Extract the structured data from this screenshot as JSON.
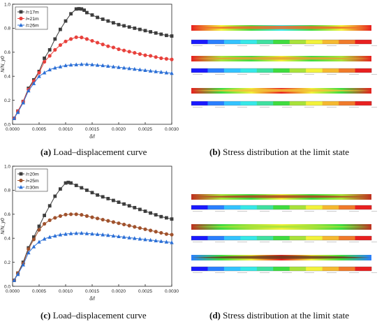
{
  "chart_data": [
    {
      "type": "line",
      "panel": "a",
      "xlabel": "δ/l",
      "ylabel": "N/N_y0",
      "xlim": [
        0,
        0.003
      ],
      "ylim": [
        0,
        1.0
      ],
      "xticks": [
        "0.0000",
        "0.0005",
        "0.0010",
        "0.0015",
        "0.0020",
        "0.0025",
        "0.0030"
      ],
      "yticks": [
        "0.0",
        "0.2",
        "0.4",
        "0.6",
        "0.8",
        "1.0"
      ],
      "legend_position": "top-left",
      "series": [
        {
          "name": "l=17m",
          "var": "l",
          "rest": "=17m",
          "color": "#3d3d3d",
          "marker": "square",
          "x": [
            3e-05,
            0.0001,
            0.0002,
            0.0003,
            0.0004,
            0.0005,
            0.0006,
            0.0007,
            0.0008,
            0.0009,
            0.001,
            0.0011,
            0.0012,
            0.00125,
            0.0013,
            0.00135,
            0.0014,
            0.0015,
            0.0016,
            0.0017,
            0.0018,
            0.0019,
            0.002,
            0.0021,
            0.0022,
            0.0023,
            0.0024,
            0.0025,
            0.0026,
            0.0027,
            0.0028,
            0.0029,
            0.003
          ],
          "y": [
            0.05,
            0.11,
            0.19,
            0.3,
            0.37,
            0.44,
            0.55,
            0.62,
            0.71,
            0.79,
            0.86,
            0.92,
            0.96,
            0.962,
            0.96,
            0.95,
            0.93,
            0.91,
            0.89,
            0.875,
            0.86,
            0.845,
            0.83,
            0.82,
            0.81,
            0.8,
            0.79,
            0.78,
            0.77,
            0.76,
            0.75,
            0.74,
            0.735
          ]
        },
        {
          "name": "l=21m",
          "var": "l",
          "rest": "=21m",
          "color": "#e8413c",
          "marker": "circle",
          "x": [
            3e-05,
            0.0001,
            0.0002,
            0.0003,
            0.0004,
            0.0005,
            0.0006,
            0.0007,
            0.0008,
            0.0009,
            0.001,
            0.0011,
            0.0012,
            0.0013,
            0.0014,
            0.0015,
            0.0016,
            0.0017,
            0.0018,
            0.0019,
            0.002,
            0.0021,
            0.0022,
            0.0023,
            0.0024,
            0.0025,
            0.0026,
            0.0027,
            0.0028,
            0.0029,
            0.003
          ],
          "y": [
            0.05,
            0.11,
            0.19,
            0.29,
            0.36,
            0.43,
            0.52,
            0.57,
            0.62,
            0.66,
            0.69,
            0.71,
            0.725,
            0.723,
            0.71,
            0.695,
            0.68,
            0.665,
            0.65,
            0.64,
            0.625,
            0.615,
            0.605,
            0.595,
            0.585,
            0.575,
            0.57,
            0.56,
            0.55,
            0.545,
            0.54
          ]
        },
        {
          "name": "l=26m",
          "var": "l",
          "rest": "=26m",
          "color": "#2b6fd6",
          "marker": "triangle",
          "x": [
            3e-05,
            0.0001,
            0.0002,
            0.0003,
            0.0004,
            0.0005,
            0.0006,
            0.0007,
            0.0008,
            0.0009,
            0.001,
            0.0011,
            0.0012,
            0.0013,
            0.0014,
            0.0015,
            0.0016,
            0.0017,
            0.0018,
            0.0019,
            0.002,
            0.0021,
            0.0022,
            0.0023,
            0.0024,
            0.0025,
            0.0026,
            0.0027,
            0.0028,
            0.0029,
            0.003
          ],
          "y": [
            0.05,
            0.1,
            0.18,
            0.28,
            0.34,
            0.4,
            0.43,
            0.455,
            0.47,
            0.48,
            0.49,
            0.495,
            0.497,
            0.5,
            0.5,
            0.497,
            0.493,
            0.49,
            0.485,
            0.48,
            0.475,
            0.47,
            0.465,
            0.46,
            0.455,
            0.45,
            0.445,
            0.44,
            0.435,
            0.43,
            0.425
          ]
        }
      ]
    },
    {
      "type": "line",
      "panel": "c",
      "xlabel": "δ/l",
      "ylabel": "N/N_y0",
      "xlim": [
        0,
        0.003
      ],
      "ylim": [
        0,
        1.0
      ],
      "xticks": [
        "0.0000",
        "0.0005",
        "0.0010",
        "0.0015",
        "0.0020",
        "0.0025",
        "0.0030"
      ],
      "yticks": [
        "0.0",
        "0.2",
        "0.4",
        "0.6",
        "0.8",
        "1.0"
      ],
      "legend_position": "top-left",
      "series": [
        {
          "name": "l=20m",
          "var": "l",
          "rest": "=20m",
          "color": "#3d3d3d",
          "marker": "square",
          "x": [
            3e-05,
            0.0001,
            0.0002,
            0.0003,
            0.0004,
            0.0005,
            0.0006,
            0.0007,
            0.0008,
            0.0009,
            0.001,
            0.00105,
            0.0011,
            0.0012,
            0.0013,
            0.0014,
            0.0015,
            0.0016,
            0.0017,
            0.0018,
            0.0019,
            0.002,
            0.0021,
            0.0022,
            0.0023,
            0.0024,
            0.0025,
            0.0026,
            0.0027,
            0.0028,
            0.0029,
            0.003
          ],
          "y": [
            0.05,
            0.11,
            0.2,
            0.32,
            0.41,
            0.5,
            0.59,
            0.67,
            0.75,
            0.81,
            0.86,
            0.865,
            0.86,
            0.84,
            0.82,
            0.8,
            0.78,
            0.76,
            0.745,
            0.73,
            0.715,
            0.7,
            0.685,
            0.67,
            0.655,
            0.64,
            0.625,
            0.61,
            0.595,
            0.58,
            0.57,
            0.56
          ]
        },
        {
          "name": "l=25m",
          "var": "l",
          "rest": "=25m",
          "color": "#a0522d",
          "marker": "circle",
          "x": [
            3e-05,
            0.0001,
            0.0002,
            0.0003,
            0.0004,
            0.0005,
            0.0006,
            0.0007,
            0.0008,
            0.0009,
            0.001,
            0.0011,
            0.0012,
            0.0013,
            0.0014,
            0.0015,
            0.0016,
            0.0017,
            0.0018,
            0.0019,
            0.002,
            0.0021,
            0.0022,
            0.0023,
            0.0024,
            0.0025,
            0.0026,
            0.0027,
            0.0028,
            0.0029,
            0.003
          ],
          "y": [
            0.05,
            0.11,
            0.19,
            0.31,
            0.39,
            0.47,
            0.52,
            0.55,
            0.57,
            0.585,
            0.597,
            0.6,
            0.6,
            0.595,
            0.585,
            0.575,
            0.565,
            0.555,
            0.545,
            0.535,
            0.525,
            0.515,
            0.505,
            0.495,
            0.485,
            0.475,
            0.465,
            0.455,
            0.445,
            0.435,
            0.43
          ]
        },
        {
          "name": "l=30m",
          "var": "l",
          "rest": "=30m",
          "color": "#2b6fd6",
          "marker": "triangle",
          "x": [
            3e-05,
            0.0001,
            0.0002,
            0.0003,
            0.0004,
            0.0005,
            0.0006,
            0.0007,
            0.0008,
            0.0009,
            0.001,
            0.0011,
            0.0012,
            0.0013,
            0.0014,
            0.0015,
            0.0016,
            0.0017,
            0.0018,
            0.0019,
            0.002,
            0.0021,
            0.0022,
            0.0023,
            0.0024,
            0.0025,
            0.0026,
            0.0027,
            0.0028,
            0.0029,
            0.003
          ],
          "y": [
            0.05,
            0.1,
            0.18,
            0.28,
            0.33,
            0.37,
            0.395,
            0.41,
            0.42,
            0.43,
            0.435,
            0.44,
            0.442,
            0.443,
            0.44,
            0.437,
            0.433,
            0.43,
            0.425,
            0.42,
            0.415,
            0.41,
            0.405,
            0.4,
            0.395,
            0.39,
            0.385,
            0.38,
            0.375,
            0.37,
            0.365
          ]
        }
      ]
    }
  ],
  "captions": {
    "a": {
      "tag": "(a)",
      "text": " Load–displacement curve"
    },
    "b": {
      "tag": "(b)",
      "text": " Stress distribution at the limit state"
    },
    "c": {
      "tag": "(c)",
      "text": " Load–displacement curve"
    },
    "d": {
      "tag": "(d)",
      "text": " Stress distribution at the limit state"
    }
  },
  "stress_colors": [
    "#1a1aff",
    "#2a7fff",
    "#33c3ff",
    "#36e8e8",
    "#3fe0a0",
    "#3fdc3f",
    "#a8e23a",
    "#f2f23a",
    "#f5b930",
    "#f07a2a",
    "#e82020"
  ]
}
